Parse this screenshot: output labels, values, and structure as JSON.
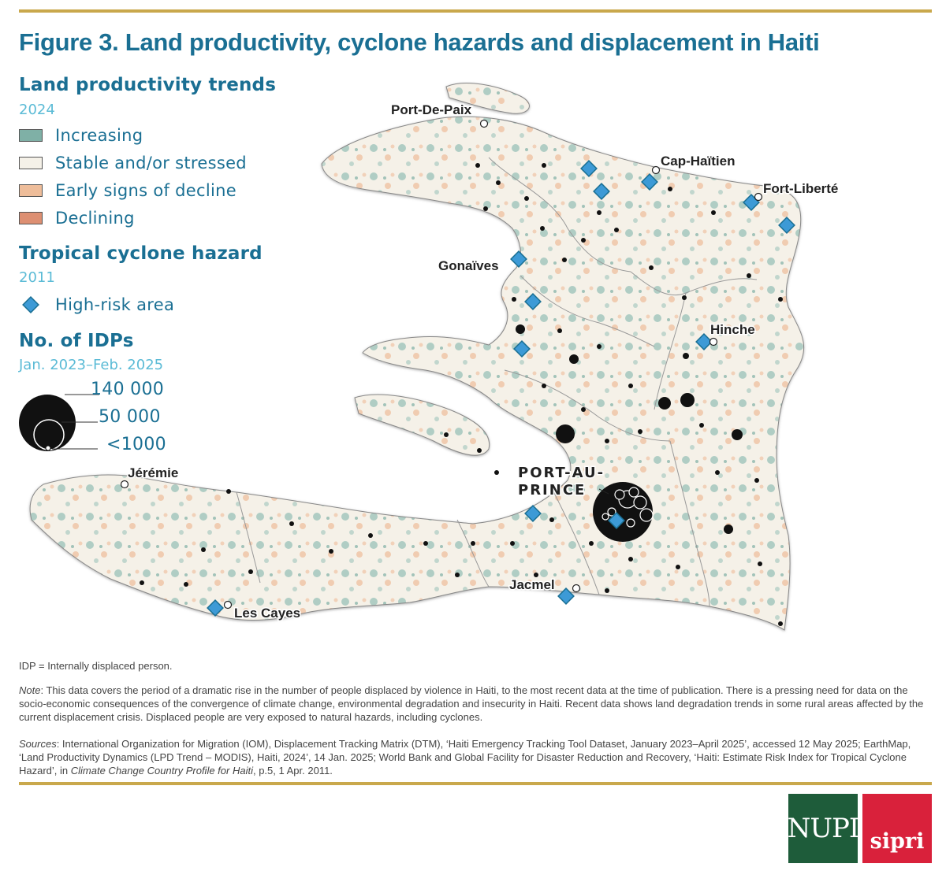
{
  "title": "Figure 3. Land productivity, cyclone hazards and displacement in Haiti",
  "colors": {
    "accent": "#1a6f93",
    "sub": "#5bbbd6",
    "rule": "#c9a84c",
    "increasing": "#7fb0a6",
    "stable": "#f5f1e8",
    "early_decline": "#eebd9a",
    "declining": "#dd8f72",
    "hazard": "#3d9ad6",
    "idp": "#111111"
  },
  "legend": {
    "land": {
      "heading": "Land productivity trends",
      "year": "2024",
      "items": [
        {
          "label": "Increasing",
          "color": "#7fb0a6"
        },
        {
          "label": "Stable and/or stressed",
          "color": "#f5f1e8"
        },
        {
          "label": "Early signs of decline",
          "color": "#eebd9a"
        },
        {
          "label": "Declining",
          "color": "#dd8f72"
        }
      ]
    },
    "cyclone": {
      "heading": "Tropical cyclone hazard",
      "year": "2011",
      "item": "High-risk area",
      "icon": "diamond-icon"
    },
    "idp": {
      "heading": "No. of IDPs",
      "period": "Jan. 2023–Feb. 2025",
      "sizes": [
        "140 000",
        "50 000",
        "<1000"
      ]
    }
  },
  "map": {
    "cities": [
      {
        "name": "Port-De-Paix"
      },
      {
        "name": "Cap-Haïtien"
      },
      {
        "name": "Fort-Liberté"
      },
      {
        "name": "Gonaïves"
      },
      {
        "name": "Hinche"
      },
      {
        "name": "Jérémie"
      },
      {
        "name": "Les Cayes"
      },
      {
        "name": "Jacmel"
      }
    ],
    "capital_lines": [
      "PORT-AU-",
      "PRINCE"
    ]
  },
  "footnote": "IDP = Internally displaced person.",
  "note": {
    "label": "Note",
    "text": ":  This data covers the period of a dramatic rise in the number of people displaced by violence in Haiti, to the most recent data at the time of publication. There is a pressing need for data on the socio-economic consequences of the convergence of climate change, environmental degradation and insecurity in Haiti. Recent data shows land degradation trends in some rural areas affected by the current displacement crisis. Displaced people are very exposed to natural hazards, including cyclones."
  },
  "sources": {
    "label": "Sources",
    "text1": ": International Organization for Migration (IOM), Displacement Tracking Matrix (DTM), ‘Haiti Emergency Tracking Tool Dataset, January 2023–April 2025’, accessed 12 May 2025; EarthMap, ‘Land Productivity Dynamics (LPD Trend – MODIS), Haiti, 2024’, 14 Jan. 2025; World Bank and Global Facility for Disaster Reduction and Recovery, ‘Haiti: Estimate Risk Index for Tropical Cyclone Hazard’, in ",
    "italic": "Climate Change Country Profile for Haiti",
    "text2": ", p.5, 1 Apr. 2011."
  },
  "logos": {
    "nupi": "NUPI",
    "sipri": "sipri"
  }
}
